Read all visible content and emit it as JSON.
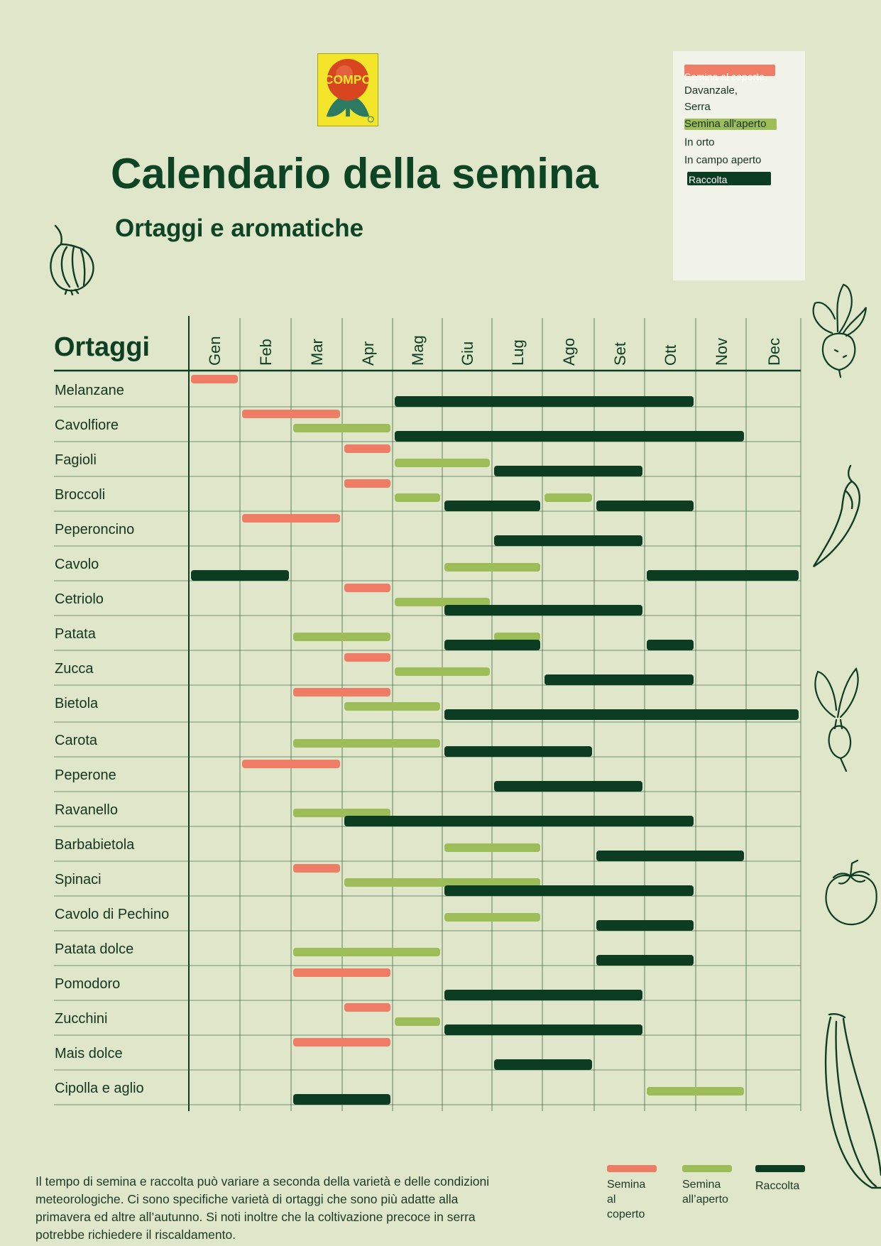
{
  "logo_text": "COMPO",
  "title": "Calendario della semina",
  "subtitle": "Ortaggi e aromatiche",
  "colors": {
    "indoor": "#ef7c64",
    "outdoor": "#9dbd58",
    "harvest": "#0c3d22",
    "background": "#dfe6c9"
  },
  "legend_box": {
    "indoor_label": "Semina al coperto,",
    "indoor_line2": "Davanzale,",
    "indoor_line3": "Serra",
    "outdoor_label": "Semina all'aperto",
    "outdoor_line2": "In orto",
    "outdoor_line3": "In campo aperto",
    "harvest_label": "Raccolta"
  },
  "table": {
    "header": "Ortaggi",
    "months": [
      "Gen",
      "Feb",
      "Mar",
      "Apr",
      "Mag",
      "Giu",
      "Lug",
      "Ago",
      "Set",
      "Ott",
      "Nov",
      "Dec"
    ],
    "rows": [
      {
        "name": "Melanzane",
        "bars": [
          [
            "indoor",
            1,
            1
          ],
          [
            "harvest",
            5,
            10
          ]
        ]
      },
      {
        "name": "Cavolfiore",
        "bars": [
          [
            "indoor",
            2,
            3
          ],
          [
            "outdoor",
            3,
            4
          ],
          [
            "harvest",
            5,
            11
          ]
        ]
      },
      {
        "name": "Fagioli",
        "bars": [
          [
            "indoor",
            4,
            4
          ],
          [
            "outdoor",
            5,
            6
          ],
          [
            "harvest",
            7,
            9
          ]
        ]
      },
      {
        "name": "Broccoli",
        "bars": [
          [
            "indoor",
            4,
            4
          ],
          [
            "outdoor",
            5,
            5
          ],
          [
            "outdoor",
            8,
            8
          ],
          [
            "harvest",
            6,
            7
          ],
          [
            "harvest",
            9,
            10
          ]
        ]
      },
      {
        "name": "Peperoncino",
        "bars": [
          [
            "indoor",
            2,
            3
          ],
          [
            "harvest",
            7,
            9
          ]
        ]
      },
      {
        "name": "Cavolo",
        "bars": [
          [
            "outdoor",
            6,
            7
          ],
          [
            "harvest",
            1,
            2
          ],
          [
            "harvest",
            10,
            12
          ]
        ]
      },
      {
        "name": "Cetriolo",
        "bars": [
          [
            "indoor",
            4,
            4
          ],
          [
            "outdoor",
            5,
            6
          ],
          [
            "harvest",
            6,
            9
          ]
        ]
      },
      {
        "name": "Patata",
        "bars": [
          [
            "outdoor",
            3,
            4
          ],
          [
            "outdoor",
            7,
            7
          ],
          [
            "harvest",
            6,
            7
          ],
          [
            "harvest",
            10,
            10
          ]
        ]
      },
      {
        "name": "Zucca",
        "bars": [
          [
            "indoor",
            4,
            4
          ],
          [
            "outdoor",
            5,
            6
          ],
          [
            "harvest",
            8,
            10
          ]
        ]
      },
      {
        "name": "Bietola",
        "bars": [
          [
            "indoor",
            3,
            4
          ],
          [
            "outdoor",
            4,
            5
          ],
          [
            "harvest",
            6,
            12
          ]
        ]
      },
      {
        "name": "Carota",
        "bars": [
          [
            "outdoor",
            3,
            5
          ],
          [
            "harvest",
            6,
            8
          ]
        ]
      },
      {
        "name": "Peperone",
        "bars": [
          [
            "indoor",
            2,
            3
          ],
          [
            "harvest",
            7,
            9
          ]
        ]
      },
      {
        "name": "Ravanello",
        "bars": [
          [
            "outdoor",
            3,
            4
          ],
          [
            "harvest",
            4,
            10
          ]
        ]
      },
      {
        "name": "Barbabietola",
        "bars": [
          [
            "outdoor",
            6,
            7
          ],
          [
            "harvest",
            9,
            11
          ]
        ]
      },
      {
        "name": "Spinaci",
        "bars": [
          [
            "indoor",
            3,
            3
          ],
          [
            "outdoor",
            4,
            7
          ],
          [
            "harvest",
            6,
            10
          ]
        ]
      },
      {
        "name": "Cavolo di Pechino",
        "bars": [
          [
            "outdoor",
            6,
            7
          ],
          [
            "harvest",
            9,
            10
          ]
        ]
      },
      {
        "name": "Patata dolce",
        "bars": [
          [
            "outdoor",
            3,
            5
          ],
          [
            "harvest",
            9,
            10
          ]
        ]
      },
      {
        "name": "Pomodoro",
        "bars": [
          [
            "indoor",
            3,
            4
          ],
          [
            "harvest",
            6,
            9
          ]
        ]
      },
      {
        "name": "Zucchini",
        "bars": [
          [
            "indoor",
            4,
            4
          ],
          [
            "outdoor",
            5,
            5
          ],
          [
            "harvest",
            6,
            9
          ]
        ]
      },
      {
        "name": "Mais dolce",
        "bars": [
          [
            "indoor",
            3,
            4
          ],
          [
            "harvest",
            7,
            8
          ]
        ]
      },
      {
        "name": "Cipolla e aglio",
        "bars": [
          [
            "outdoor",
            10,
            11
          ],
          [
            "harvest",
            3,
            4
          ]
        ]
      }
    ]
  },
  "footnote": "Il tempo di semina e raccolta può variare a seconda della varietà e delle condizioni meteorologiche. Ci sono specifiche varietà di ortaggi che sono più adatte alla primavera ed altre all’autunno. Si noti inoltre che la coltivazione precoce in serra potrebbe richiedere il riscaldamento.",
  "bottom_legend": {
    "indoor_line1": "Semina",
    "indoor_line2": "al",
    "indoor_line3": "coperto",
    "outdoor_line1": "Semina",
    "outdoor_line2": "all’aperto",
    "harvest": "Raccolta"
  },
  "illustrations": [
    "onion-icon",
    "beetroot-icon",
    "chili-pepper-icon",
    "radish-icon",
    "tomato-icon",
    "zucchini-icon"
  ]
}
